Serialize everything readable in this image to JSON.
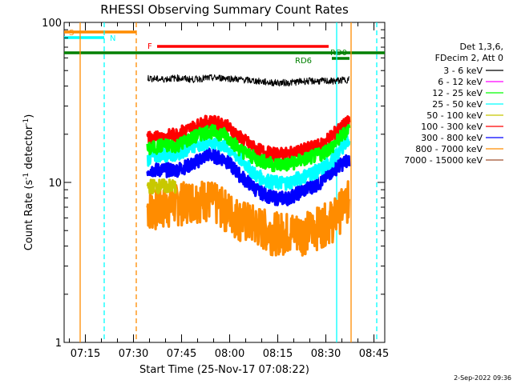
{
  "chart_data": {
    "type": "line",
    "title": "RHESSI Observing Summary Count Rates",
    "xlabel": "Start Time (25-Nov-17 07:08:22)",
    "ylabel_main": "Count Rate (s",
    "ylabel_sup1": "-1",
    "ylabel_mid": " detector",
    "ylabel_sup2": "-1",
    "ylabel_end": ")",
    "yscale": "log",
    "ylim": [
      1,
      100
    ],
    "xlim_minutes": [
      0,
      100
    ],
    "xticks": [
      {
        "m": 6.63,
        "label": "07:15"
      },
      {
        "m": 21.63,
        "label": "07:30"
      },
      {
        "m": 36.63,
        "label": "07:45"
      },
      {
        "m": 51.63,
        "label": "08:00"
      },
      {
        "m": 66.63,
        "label": "08:15"
      },
      {
        "m": 81.63,
        "label": "08:30"
      },
      {
        "m": 96.63,
        "label": "08:45"
      }
    ],
    "yticks": [
      {
        "v": 1,
        "label": "1"
      },
      {
        "v": 10,
        "label": "10"
      },
      {
        "v": 100,
        "label": "100"
      }
    ],
    "legend_header": [
      "Det 1,3,6,",
      "FDecim 2, Att 0"
    ],
    "series": [
      {
        "name": "3 - 6 keV",
        "color": "#000000",
        "x": [
          26,
          30,
          35,
          40,
          45,
          50,
          55,
          60,
          65,
          70,
          75,
          80,
          84,
          89
        ],
        "y": [
          45,
          44,
          45,
          44,
          45,
          45,
          44,
          43,
          42,
          42,
          43,
          43,
          43,
          44
        ]
      },
      {
        "name": "6 - 12 keV",
        "color": "#ff00ff",
        "x": [],
        "y": []
      },
      {
        "name": "12 - 25 keV",
        "color": "#00ff00",
        "x": [
          26,
          30,
          35,
          40,
          45,
          50,
          55,
          60,
          65,
          70,
          75,
          80,
          84,
          89
        ],
        "y": [
          16,
          17,
          17,
          19,
          21,
          20,
          16,
          14,
          13,
          13,
          14,
          15,
          17,
          22
        ]
      },
      {
        "name": "25 - 50 keV",
        "color": "#00ffff",
        "x": [
          26,
          30,
          35,
          40,
          45,
          50,
          55,
          60,
          65,
          70,
          75,
          80,
          84,
          89
        ],
        "y": [
          14,
          15,
          15,
          17,
          18,
          17,
          14,
          11,
          10,
          10,
          11,
          12,
          14,
          19
        ]
      },
      {
        "name": "50 - 100 keV",
        "color": "#c8c800",
        "x": [
          26,
          30,
          35
        ],
        "y": [
          9.5,
          9.5,
          9.5
        ]
      },
      {
        "name": "100 - 300 keV",
        "color": "#ff0000",
        "x": [
          26,
          30,
          35,
          40,
          45,
          50,
          55,
          60,
          65,
          70,
          75,
          80,
          84,
          89
        ],
        "y": [
          19,
          19,
          20,
          22,
          24,
          23,
          19,
          16,
          15,
          15,
          16,
          17,
          20,
          24
        ]
      },
      {
        "name": "300 - 800 keV",
        "color": "#0000ff",
        "x": [
          26,
          30,
          35,
          40,
          45,
          50,
          55,
          60,
          65,
          70,
          75,
          80,
          84,
          89
        ],
        "y": [
          12,
          12,
          12,
          13,
          15,
          14,
          11,
          9,
          8,
          8,
          9,
          10,
          12,
          14
        ]
      },
      {
        "name": "800 - 7000 keV",
        "color": "#ff8c00",
        "x": [
          26,
          30,
          35,
          40,
          45,
          50,
          55,
          60,
          65,
          70,
          75,
          80,
          84,
          89
        ],
        "y": [
          7,
          7,
          7.5,
          8,
          8,
          7,
          6,
          5.5,
          5,
          5,
          5,
          5.5,
          6,
          8
        ]
      },
      {
        "name": "7000 - 15000 keV",
        "color": "#a0522d",
        "x": [],
        "y": []
      }
    ],
    "flags": [
      {
        "label": "S",
        "color": "#ff8c00",
        "start": 0,
        "end": 22.5
      },
      {
        "label": "N",
        "color": "#00ffff",
        "start": 0,
        "end": 12.5
      },
      {
        "label": "F",
        "color": "#ff0000",
        "start": 29,
        "end": 82.5
      },
      {
        "label": "RD0",
        "color": "#008000",
        "start": 0,
        "end": 100
      },
      {
        "label": "RD6",
        "color": "#008000",
        "start": 83.5,
        "end": 89
      }
    ],
    "vlines": [
      {
        "m": 5,
        "color": "#ff8c00",
        "dash": false
      },
      {
        "m": 12.5,
        "color": "#00ffff",
        "dash": true
      },
      {
        "m": 22.5,
        "color": "#ff8c00",
        "dash": true
      },
      {
        "m": 85,
        "color": "#00ffff",
        "dash": false
      },
      {
        "m": 89.5,
        "color": "#ff8c00",
        "dash": false
      },
      {
        "m": 97.5,
        "color": "#00ffff",
        "dash": true
      }
    ],
    "legend_placement": "right",
    "grid": false
  },
  "footer": {
    "timestamp": "2-Sep-2022 09:36"
  }
}
